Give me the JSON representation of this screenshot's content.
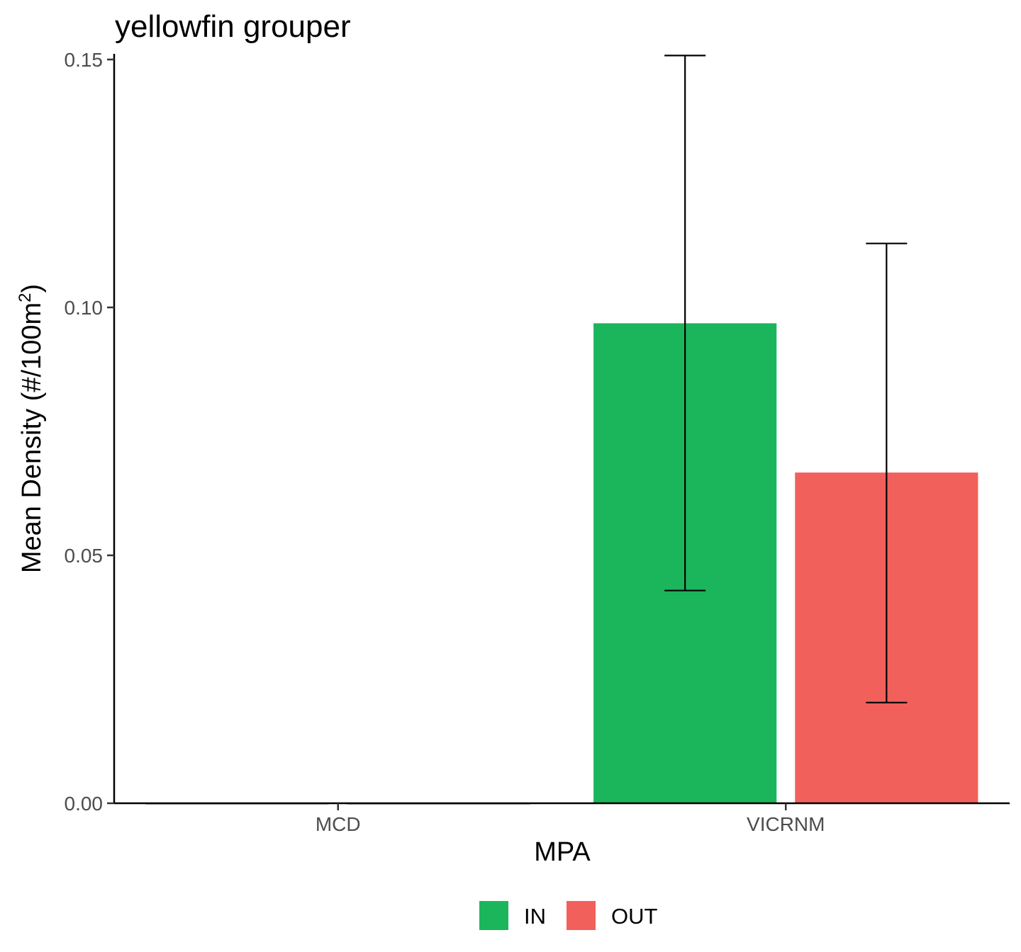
{
  "chart_data": {
    "type": "bar",
    "title": "yellowfin grouper",
    "xlabel": "MPA",
    "ylabel": "Mean Density (#/100m",
    "ylabel_superscript": "2",
    "ylabel_suffix": ")",
    "categories": [
      "MCD",
      "VICRNM"
    ],
    "ylim": [
      0,
      0.15
    ],
    "yticks": [
      0.0,
      0.05,
      0.1,
      0.15
    ],
    "ytick_labels": [
      "0.00",
      "0.05",
      "0.10",
      "0.15"
    ],
    "series": [
      {
        "name": "IN",
        "color": "#1bb65b",
        "values": [
          0,
          0.0968
        ],
        "error_low": [
          0,
          0.0429
        ],
        "error_high": [
          0,
          0.1508
        ]
      },
      {
        "name": "OUT",
        "color": "#f2605b",
        "values": [
          0,
          0.0667
        ],
        "error_low": [
          0,
          0.0203
        ],
        "error_high": [
          0,
          0.1129
        ]
      }
    ],
    "legend": {
      "position": "bottom"
    },
    "grid": false
  }
}
